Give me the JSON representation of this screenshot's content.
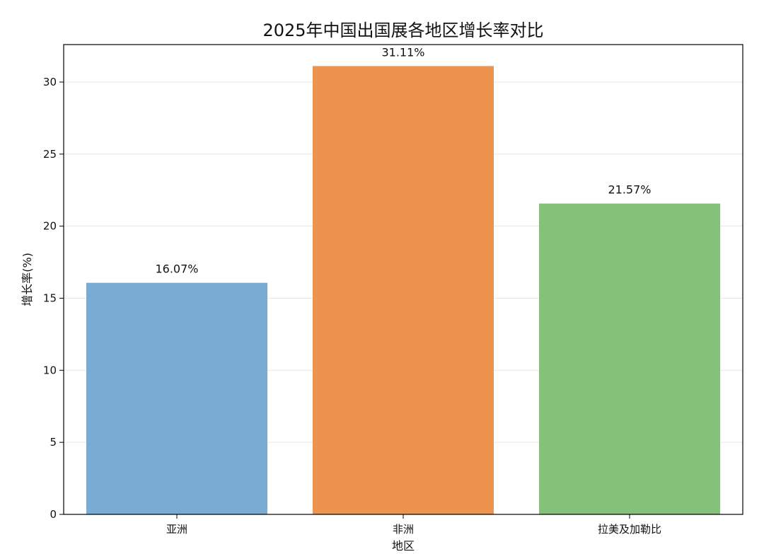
{
  "chart_data": {
    "type": "bar",
    "title": "2025年中国出国展各地区增长率对比",
    "xlabel": "地区",
    "ylabel": "增长率(%)",
    "categories": [
      "亚洲",
      "非洲",
      "拉美及加勒比"
    ],
    "values": [
      16.07,
      31.11,
      21.57
    ],
    "data_labels": [
      "16.07%",
      "31.11%",
      "21.57%"
    ],
    "colors": [
      "#7aabd2",
      "#ed9350",
      "#86c17a"
    ],
    "ylim": [
      0,
      32.6
    ],
    "yticks": [
      0,
      5,
      10,
      15,
      20,
      25,
      30
    ],
    "grid": true,
    "legend": "none"
  }
}
